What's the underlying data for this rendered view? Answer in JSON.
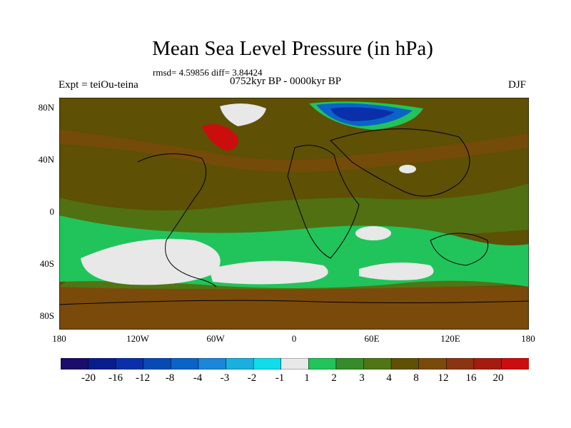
{
  "title": "Mean Sea Level Pressure (in hPa)",
  "stats": "rmsd= 4.59856 diff= 3.84424",
  "experiment": "Expt = teiOu-teina",
  "period": "0752kyr BP - 0000kyr BP",
  "season": "DJF",
  "lat_labels": [
    "80N",
    "40N",
    "0",
    "40S",
    "80S"
  ],
  "lon_labels": [
    "180",
    "120W",
    "60W",
    "0",
    "60E",
    "120E",
    "180"
  ],
  "legend": {
    "colors": [
      "#1c0c6c",
      "#0a1d8c",
      "#0b2fa8",
      "#0849b4",
      "#0b63c7",
      "#1d86d8",
      "#1ab0dd",
      "#10dcea",
      "#e8e8e8",
      "#21c45a",
      "#348c2a",
      "#4f7515",
      "#5e5005",
      "#7a4a0a",
      "#8b3411",
      "#a31c10",
      "#cc0d0d"
    ],
    "labels": [
      "-20",
      "-16",
      "-12",
      "-8",
      "-4",
      "-3",
      "-2",
      "-1",
      "1",
      "2",
      "3",
      "4",
      "8",
      "12",
      "16",
      "20"
    ]
  }
}
